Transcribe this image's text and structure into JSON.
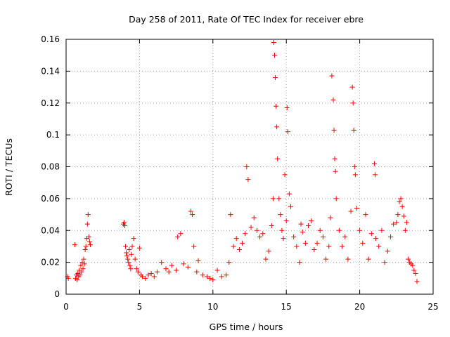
{
  "chart_data": {
    "type": "scatter",
    "title": "Day 258 of 2011, Rate Of TEC Index for receiver ebre",
    "xlabel": "GPS time / hours",
    "ylabel": "ROTI / TECUs",
    "xlim": [
      0,
      25
    ],
    "ylim": [
      0,
      0.16
    ],
    "x_ticks": [
      0,
      5,
      10,
      15,
      20,
      25
    ],
    "y_ticks": [
      0,
      0.02,
      0.04,
      0.06,
      0.08,
      0.1,
      0.12,
      0.14,
      0.16
    ],
    "x_tick_labels": [
      "0",
      "5",
      "10",
      "15",
      "20",
      "25"
    ],
    "y_tick_labels": [
      "0",
      "0.02",
      "0.04",
      "0.06",
      "0.08",
      "0.1",
      "0.12",
      "0.14",
      "0.16"
    ],
    "grid": true,
    "marker": "+",
    "marker_color": "#ff0000",
    "series": [
      {
        "name": "ROTI",
        "x": [
          0.1,
          0.15,
          0.6,
          0.65,
          0.7,
          0.75,
          0.8,
          0.85,
          0.9,
          0.95,
          1.0,
          1.05,
          1.1,
          1.15,
          1.2,
          1.25,
          1.3,
          1.35,
          1.4,
          1.45,
          1.5,
          1.55,
          1.6,
          1.65,
          3.9,
          3.95,
          4.0,
          4.05,
          4.1,
          4.15,
          4.2,
          4.25,
          4.3,
          4.35,
          4.4,
          4.45,
          4.5,
          4.6,
          4.7,
          4.8,
          4.9,
          5.0,
          5.1,
          5.2,
          5.4,
          5.6,
          5.8,
          6.0,
          6.2,
          6.5,
          6.8,
          7.0,
          7.2,
          7.5,
          7.6,
          7.8,
          8.0,
          8.3,
          8.5,
          8.6,
          8.7,
          8.9,
          9.0,
          9.3,
          9.6,
          9.8,
          10.0,
          10.3,
          10.6,
          10.9,
          11.1,
          11.2,
          11.4,
          11.6,
          11.8,
          12.0,
          12.2,
          12.3,
          12.4,
          12.6,
          12.8,
          13.0,
          13.2,
          13.4,
          13.6,
          13.8,
          14.0,
          14.1,
          14.15,
          14.2,
          14.25,
          14.3,
          14.35,
          14.4,
          14.5,
          14.6,
          14.7,
          14.8,
          14.9,
          15.0,
          15.05,
          15.1,
          15.2,
          15.3,
          15.5,
          15.7,
          15.9,
          16.0,
          16.1,
          16.3,
          16.5,
          16.7,
          16.9,
          17.1,
          17.3,
          17.5,
          17.7,
          17.9,
          18.0,
          18.1,
          18.2,
          18.25,
          18.3,
          18.35,
          18.4,
          18.6,
          18.8,
          19.0,
          19.2,
          19.4,
          19.5,
          19.55,
          19.6,
          19.65,
          19.7,
          19.8,
          20.0,
          20.2,
          20.4,
          20.6,
          20.8,
          21.0,
          21.05,
          21.1,
          21.3,
          21.5,
          21.7,
          21.9,
          22.1,
          22.3,
          22.5,
          22.6,
          22.7,
          22.8,
          22.9,
          23.0,
          23.1,
          23.2,
          23.3,
          23.4,
          23.5,
          23.6,
          23.7,
          23.8,
          23.9
        ],
        "y": [
          0.011,
          0.01,
          0.031,
          0.01,
          0.012,
          0.009,
          0.013,
          0.011,
          0.015,
          0.012,
          0.018,
          0.014,
          0.02,
          0.016,
          0.022,
          0.019,
          0.028,
          0.03,
          0.035,
          0.044,
          0.05,
          0.036,
          0.033,
          0.031,
          0.044,
          0.045,
          0.043,
          0.03,
          0.026,
          0.024,
          0.022,
          0.02,
          0.028,
          0.018,
          0.016,
          0.025,
          0.03,
          0.035,
          0.022,
          0.016,
          0.014,
          0.029,
          0.012,
          0.011,
          0.01,
          0.012,
          0.013,
          0.011,
          0.014,
          0.02,
          0.016,
          0.014,
          0.018,
          0.015,
          0.036,
          0.038,
          0.019,
          0.017,
          0.052,
          0.05,
          0.03,
          0.014,
          0.021,
          0.012,
          0.011,
          0.01,
          0.009,
          0.015,
          0.011,
          0.012,
          0.02,
          0.05,
          0.03,
          0.035,
          0.028,
          0.032,
          0.038,
          0.08,
          0.072,
          0.042,
          0.048,
          0.04,
          0.036,
          0.038,
          0.022,
          0.027,
          0.043,
          0.06,
          0.158,
          0.15,
          0.136,
          0.118,
          0.105,
          0.085,
          0.06,
          0.05,
          0.04,
          0.035,
          0.075,
          0.046,
          0.117,
          0.102,
          0.063,
          0.055,
          0.036,
          0.03,
          0.02,
          0.044,
          0.039,
          0.032,
          0.043,
          0.046,
          0.028,
          0.032,
          0.04,
          0.036,
          0.022,
          0.03,
          0.048,
          0.137,
          0.122,
          0.103,
          0.085,
          0.077,
          0.06,
          0.04,
          0.03,
          0.036,
          0.022,
          0.052,
          0.13,
          0.12,
          0.103,
          0.08,
          0.075,
          0.054,
          0.04,
          0.032,
          0.05,
          0.022,
          0.038,
          0.082,
          0.075,
          0.035,
          0.03,
          0.04,
          0.02,
          0.027,
          0.036,
          0.044,
          0.045,
          0.05,
          0.058,
          0.06,
          0.055,
          0.049,
          0.04,
          0.045,
          0.022,
          0.02,
          0.019,
          0.018,
          0.015,
          0.013,
          0.008
        ]
      }
    ]
  }
}
